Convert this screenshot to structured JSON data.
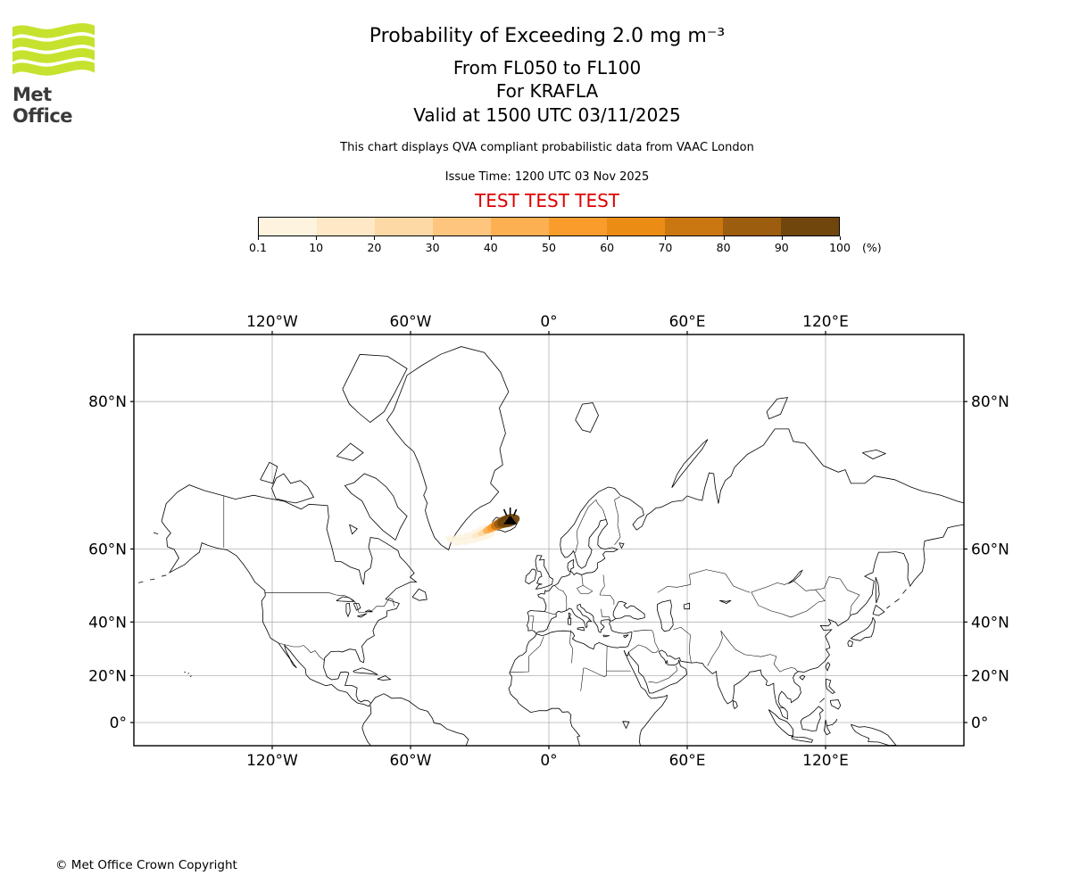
{
  "logo": {
    "text": "Met Office",
    "brand_color": "#c6e22e",
    "text_color": "#3a3a3a"
  },
  "header": {
    "title": "Probability of Exceeding 2.0 mg m⁻³",
    "subtitle_flight_levels": "From FL050 to FL100",
    "subtitle_volcano": "For KRAFLA",
    "subtitle_valid": "Valid at 1500 UTC 03/11/2025",
    "note": "This chart displays QVA compliant probabilistic data from VAAC London",
    "issue_time": "Issue Time: 1200 UTC 03 Nov 2025",
    "test_banner": "TEST TEST TEST",
    "test_color": "#dd0000"
  },
  "colorbar": {
    "tick_labels": [
      "0.1",
      "10",
      "20",
      "30",
      "40",
      "50",
      "60",
      "70",
      "80",
      "90",
      "100"
    ],
    "unit": "(%)",
    "colors": [
      "#fdf3de",
      "#fee8c6",
      "#fdd9a6",
      "#fdc57d",
      "#fdb052",
      "#f99c2c",
      "#eb8c15",
      "#cb7711",
      "#9c5d0e",
      "#70460c"
    ]
  },
  "map": {
    "lon_ticks": [
      {
        "lon": -120,
        "label": "120°W"
      },
      {
        "lon": -60,
        "label": "60°W"
      },
      {
        "lon": 0,
        "label": "0°"
      },
      {
        "lon": 60,
        "label": "60°E"
      },
      {
        "lon": 120,
        "label": "120°E"
      }
    ],
    "lat_ticks": [
      {
        "lat": 80,
        "label": "80°N"
      },
      {
        "lat": 60,
        "label": "60°N"
      },
      {
        "lat": 40,
        "label": "40°N"
      },
      {
        "lat": 20,
        "label": "20°N"
      },
      {
        "lat": 0,
        "label": "0°"
      }
    ]
  },
  "chart_data": {
    "type": "map",
    "projection": "mercator",
    "extent": {
      "lon_min": -180,
      "lon_max": 180,
      "lat_min": -10,
      "lat_max": 84
    },
    "gridlines": {
      "lons": [
        -120,
        -60,
        0,
        60,
        120
      ],
      "lats": [
        0,
        20,
        40,
        60,
        80
      ]
    },
    "threshold": "2.0 mg m⁻³",
    "layer": "FL050 to FL100",
    "valid_time": "1500 UTC 03/11/2025",
    "issue_time": "1200 UTC 03 Nov 2025",
    "source": "VAAC London",
    "volcano": {
      "name": "KRAFLA",
      "lon": -16.78,
      "lat": 65.73
    },
    "probability_levels_percent": [
      0.1,
      10,
      20,
      30,
      40,
      50,
      60,
      70,
      80,
      90,
      100
    ],
    "plume": {
      "description": "Ash-cloud exceedance probability plume extending WSW from Krafla across Iceland toward the Denmark Strait",
      "points": [
        {
          "lon": -17.5,
          "lat": 65.6,
          "probability": 95
        },
        {
          "lon": -19.2,
          "lat": 65.4,
          "probability": 85
        },
        {
          "lon": -21.0,
          "lat": 65.1,
          "probability": 70
        },
        {
          "lon": -23.0,
          "lat": 64.7,
          "probability": 55
        },
        {
          "lon": -25.2,
          "lat": 64.2,
          "probability": 40
        },
        {
          "lon": -27.8,
          "lat": 63.6,
          "probability": 25
        },
        {
          "lon": -30.6,
          "lat": 63.0,
          "probability": 12
        },
        {
          "lon": -34.0,
          "lat": 62.5,
          "probability": 6
        },
        {
          "lon": -37.8,
          "lat": 62.1,
          "probability": 3
        },
        {
          "lon": -41.5,
          "lat": 61.9,
          "probability": 1
        }
      ]
    }
  },
  "footer": {
    "copyright": "© Met Office Crown Copyright"
  }
}
